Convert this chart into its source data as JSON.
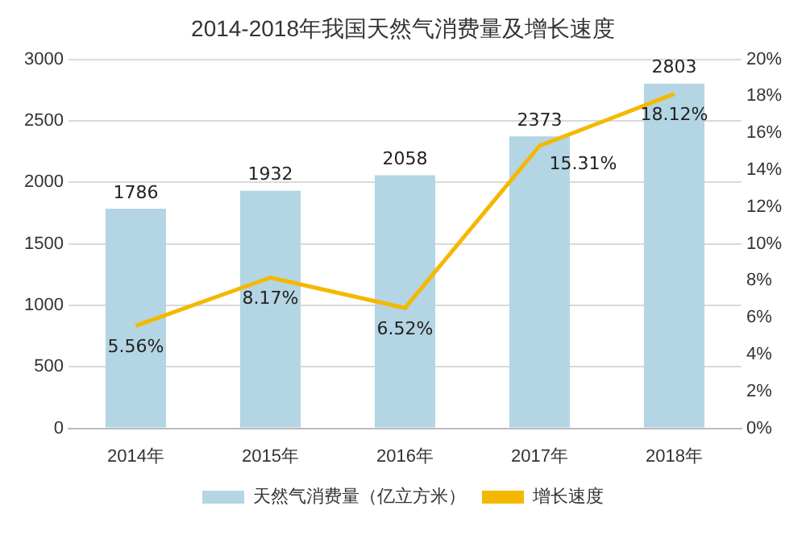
{
  "chart_data": {
    "type": "bar",
    "title": "2014-2018年我国天然气消费量及增长速度",
    "categories": [
      "2014年",
      "2015年",
      "2016年",
      "2017年",
      "2018年"
    ],
    "series": [
      {
        "name": "天然气消费量（亿立方米）",
        "color": "#b4d5e3",
        "values": [
          1786,
          1932,
          2058,
          2373,
          2803
        ],
        "value_labels": [
          "1786",
          "1932",
          "2058",
          "2373",
          "2803"
        ]
      },
      {
        "name": "增长速度",
        "type": "line",
        "axis": "y2",
        "color": "#f5b800",
        "values": [
          5.56,
          8.17,
          6.52,
          15.31,
          18.12
        ],
        "value_labels": [
          "5.56%",
          "8.17%",
          "6.52%",
          "15.31%",
          "18.12%"
        ]
      }
    ],
    "ylim": [
      0,
      3000
    ],
    "yticks": [
      0,
      500,
      1000,
      1500,
      2000,
      2500,
      3000
    ],
    "y2lim": [
      0,
      20
    ],
    "y2ticks": [
      {
        "value": 0,
        "label": "0%"
      },
      {
        "value": 2,
        "label": "2%"
      },
      {
        "value": 4,
        "label": "4%"
      },
      {
        "value": 6,
        "label": "6%"
      },
      {
        "value": 8,
        "label": "8%"
      },
      {
        "value": 10,
        "label": "10%"
      },
      {
        "value": 12,
        "label": "12%"
      },
      {
        "value": 14,
        "label": "14%"
      },
      {
        "value": 16,
        "label": "16%"
      },
      {
        "value": 18,
        "label": "18%"
      },
      {
        "value": 20,
        "label": "20%"
      }
    ],
    "grid": "y",
    "legend": "bottom",
    "marker": "none",
    "line_style": "solid"
  }
}
